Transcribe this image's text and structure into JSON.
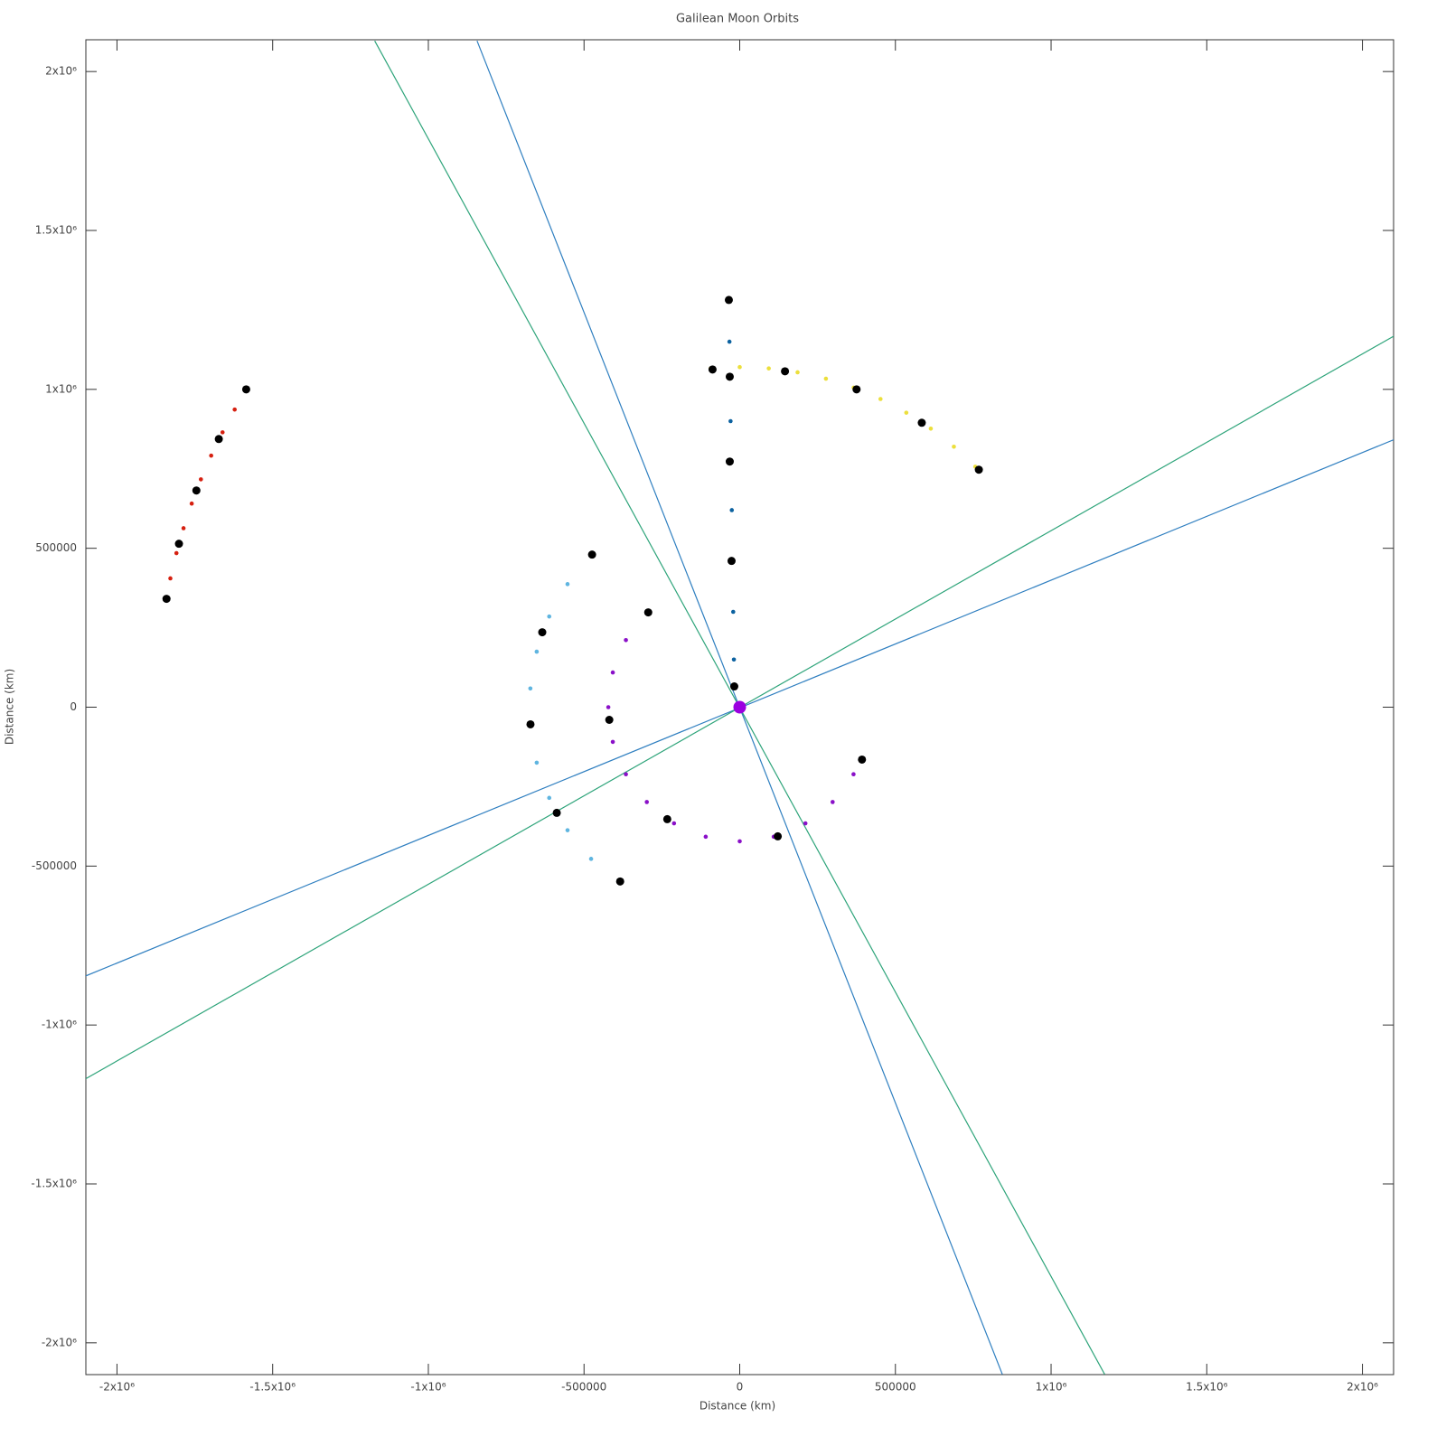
{
  "chart_data": {
    "type": "scatter",
    "title": "Galilean Moon Orbits",
    "xlabel": "Distance (km)",
    "ylabel": "Distance (km)",
    "xlim": [
      -2100000,
      2100000
    ],
    "ylim": [
      -2100000,
      2100000
    ],
    "xticks": [
      {
        "value": -2000000,
        "label": "-2x10⁶"
      },
      {
        "value": -1500000,
        "label": "-1.5x10⁶"
      },
      {
        "value": -1000000,
        "label": "-1x10⁶"
      },
      -500000,
      0,
      500000,
      {
        "value": 1000000,
        "label": "1x10⁶"
      },
      {
        "value": 1500000,
        "label": "1.5x10⁶"
      },
      {
        "value": 2000000,
        "label": "2x10⁶"
      }
    ],
    "yticks": [
      {
        "value": -2000000,
        "label": "-2x10⁶"
      },
      {
        "value": -1500000,
        "label": "-1.5x10⁶"
      },
      {
        "value": -1000000,
        "label": "-1x10⁶"
      },
      -500000,
      0,
      500000,
      {
        "value": 1000000,
        "label": "1x10⁶"
      },
      {
        "value": 1500000,
        "label": "1.5x10⁶"
      },
      {
        "value": 2000000,
        "label": "2x10⁶"
      }
    ],
    "grid": false,
    "series": [
      {
        "type": "line",
        "color": "#2f7fc0",
        "x": [
          -843600,
          843600
        ],
        "y": [
          2096700,
          -2099500
        ]
      },
      {
        "type": "line",
        "color": "#2ea47a",
        "x": [
          -1172300,
          1172300
        ],
        "y": [
          2096700,
          -2099500
        ]
      },
      {
        "type": "line",
        "color": "#2f7fc0",
        "x": [
          -2103000,
          2106000
        ],
        "y": [
          -846600,
          843800
        ]
      },
      {
        "type": "line",
        "color": "#2ea47a",
        "x": [
          -2103000,
          2106000
        ],
        "y": [
          -1170500,
          1170500
        ]
      },
      {
        "type": "scatter",
        "marker": "small",
        "color": "#d62010",
        "x": [
          -1584000,
          -1622000,
          -1661000,
          -1697500,
          -1730500,
          -1760000,
          -1786300,
          -1809100,
          -1828600,
          -1841700
        ],
        "y": [
          999400,
          936500,
          864800,
          791500,
          716800,
          640600,
          563200,
          484700,
          405300,
          341300
        ]
      },
      {
        "type": "scatter",
        "marker": "small",
        "color": "#ecdf3c",
        "x": [
          -93300,
          0,
          93300,
          185800,
          276900,
          365900,
          452200,
          535000,
          613700,
          687800,
          756600
        ],
        "y": [
          1065900,
          1070000,
          1065900,
          1053700,
          1033500,
          1005500,
          969700,
          926600,
          876500,
          819600,
          756600
        ]
      },
      {
        "type": "scatter",
        "marker": "small",
        "color": "#5fb5e0",
        "x": [
          -477300,
          -553000,
          -611800,
          -652000,
          -672400,
          -672400,
          -652000,
          -611800,
          -553000,
          -477300,
          -387200
        ],
        "y": [
          477300,
          387200,
          285300,
          174700,
          58900,
          -58900,
          -174700,
          -285300,
          -387200,
          -477300,
          -553000
        ]
      },
      {
        "type": "scatter",
        "marker": "small",
        "color": "#8a10c8",
        "x": [
          -298400,
          -365500,
          -407600,
          -422000,
          -407600,
          -365500,
          -298400,
          -211000,
          -109200,
          0,
          109200,
          211000,
          298400,
          365500,
          388500
        ],
        "y": [
          298400,
          211000,
          109200,
          0,
          -109200,
          -211000,
          -298400,
          -365500,
          -407600,
          -422000,
          -407600,
          -365500,
          -298400,
          -211000,
          -164900
        ]
      },
      {
        "type": "scatter",
        "marker": "small",
        "color": "#0c62a0",
        "x": [
          -34900,
          -33000,
          -31400,
          -29400,
          -27600,
          -25400,
          -23200,
          -20900,
          -18700,
          -17500
        ],
        "y": [
          1281300,
          1150000,
          1040000,
          900000,
          772800,
          620000,
          460200,
          300000,
          150000,
          65300
        ]
      },
      {
        "type": "scatter",
        "marker": "large",
        "color": "#000000",
        "x": [
          -1585000,
          -1673000,
          -1745000,
          -1801000,
          -1841000
        ],
        "y": [
          1000000,
          843800,
          681800,
          514200,
          341000
        ]
      },
      {
        "type": "scatter",
        "marker": "large",
        "color": "#000000",
        "x": [
          -87300,
          145400,
          375300,
          584700,
          768000
        ],
        "y": [
          1062500,
          1056800,
          1000000,
          894900,
          747200
        ]
      },
      {
        "type": "scatter",
        "marker": "large",
        "color": "#000000",
        "x": [
          -474200,
          -634200,
          -672000,
          -587600,
          -384000
        ],
        "y": [
          480100,
          235800,
          -54000,
          -332400,
          -548300
        ]
      },
      {
        "type": "scatter",
        "marker": "large",
        "color": "#000000",
        "x": [
          -293800,
          -418900,
          -232700,
          122200,
          392700
        ],
        "y": [
          298300,
          -39800,
          -352300,
          -406300,
          -164800
        ]
      },
      {
        "type": "scatter",
        "marker": "large",
        "color": "#000000",
        "x": [
          -34900,
          -32000,
          -32000,
          -26200,
          -17500
        ],
        "y": [
          1281300,
          1039800,
          772800,
          460200,
          65300
        ]
      },
      {
        "type": "scatter",
        "marker": "disc",
        "color": "#9b00e0",
        "x": [
          0
        ],
        "y": [
          0
        ]
      }
    ]
  }
}
